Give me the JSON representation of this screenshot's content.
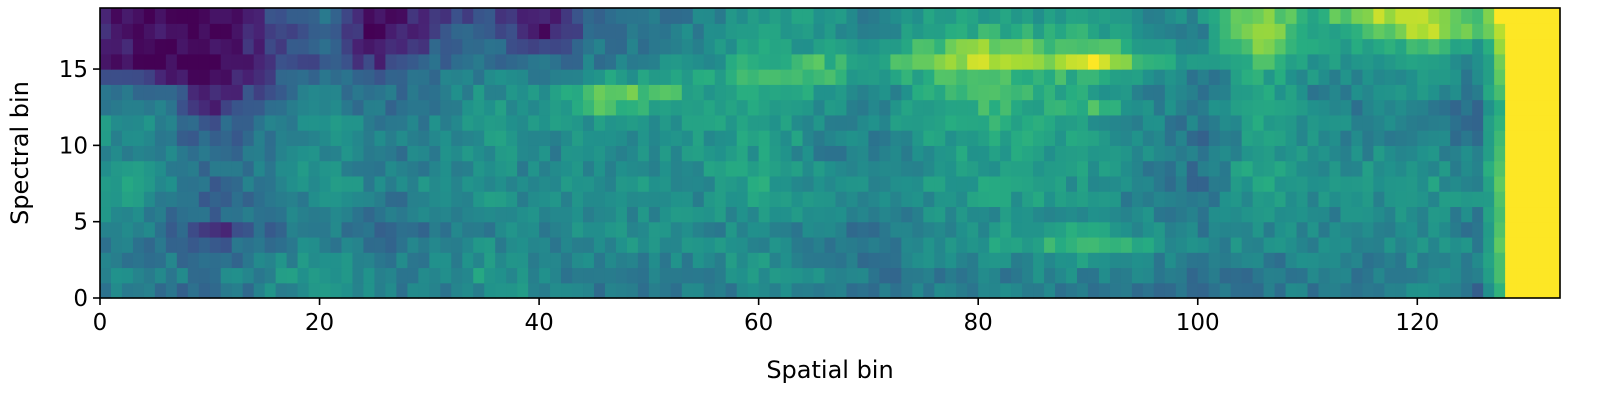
{
  "chart_data": {
    "type": "heatmap",
    "title": "",
    "xlabel": "Spatial bin",
    "ylabel": "Spectral bin",
    "xlim": [
      0,
      133
    ],
    "ylim": [
      0,
      19
    ],
    "n_cols": 133,
    "n_rows": 19,
    "xticks": [
      0,
      20,
      40,
      60,
      80,
      100,
      120
    ],
    "yticks": [
      0,
      5,
      10,
      15
    ],
    "colormap": "viridis",
    "colorbar": false,
    "grid": false,
    "value_range": [
      0,
      1
    ],
    "value_description": "approximate normalized intensity; rows listed bottom (spectral bin 0) to top (spectral bin 18), keyframes at column indices",
    "keyframe_columns": [
      0,
      5,
      10,
      15,
      20,
      25,
      30,
      35,
      40,
      45,
      50,
      55,
      60,
      65,
      70,
      75,
      80,
      85,
      90,
      95,
      100,
      105,
      110,
      115,
      120,
      125,
      127,
      128,
      132
    ],
    "keyframe_values": [
      [
        0.45,
        0.38,
        0.35,
        0.45,
        0.55,
        0.45,
        0.4,
        0.5,
        0.48,
        0.42,
        0.4,
        0.42,
        0.48,
        0.45,
        0.4,
        0.42,
        0.45,
        0.45,
        0.42,
        0.4,
        0.35,
        0.42,
        0.4,
        0.42,
        0.48,
        0.35,
        0.65,
        1.0,
        1.0
      ],
      [
        0.45,
        0.42,
        0.4,
        0.48,
        0.55,
        0.45,
        0.42,
        0.58,
        0.45,
        0.4,
        0.42,
        0.45,
        0.5,
        0.48,
        0.4,
        0.4,
        0.42,
        0.45,
        0.45,
        0.42,
        0.38,
        0.4,
        0.42,
        0.4,
        0.45,
        0.4,
        0.7,
        1.0,
        1.0
      ],
      [
        0.45,
        0.4,
        0.35,
        0.45,
        0.5,
        0.42,
        0.45,
        0.5,
        0.48,
        0.42,
        0.45,
        0.48,
        0.5,
        0.45,
        0.4,
        0.45,
        0.48,
        0.5,
        0.55,
        0.45,
        0.4,
        0.42,
        0.45,
        0.42,
        0.48,
        0.42,
        0.7,
        1.0,
        1.0
      ],
      [
        0.4,
        0.38,
        0.3,
        0.4,
        0.45,
        0.38,
        0.42,
        0.48,
        0.45,
        0.5,
        0.52,
        0.48,
        0.5,
        0.45,
        0.38,
        0.48,
        0.55,
        0.62,
        0.72,
        0.55,
        0.45,
        0.48,
        0.48,
        0.45,
        0.5,
        0.45,
        0.75,
        1.0,
        1.0
      ],
      [
        0.45,
        0.4,
        0.15,
        0.35,
        0.45,
        0.35,
        0.4,
        0.45,
        0.45,
        0.48,
        0.5,
        0.45,
        0.48,
        0.42,
        0.4,
        0.45,
        0.52,
        0.55,
        0.58,
        0.5,
        0.42,
        0.48,
        0.45,
        0.42,
        0.48,
        0.42,
        0.72,
        1.0,
        1.0
      ],
      [
        0.5,
        0.4,
        0.32,
        0.4,
        0.48,
        0.38,
        0.45,
        0.48,
        0.48,
        0.45,
        0.48,
        0.48,
        0.52,
        0.45,
        0.42,
        0.48,
        0.5,
        0.52,
        0.5,
        0.45,
        0.4,
        0.5,
        0.48,
        0.45,
        0.5,
        0.45,
        0.7,
        1.0,
        1.0
      ],
      [
        0.55,
        0.45,
        0.28,
        0.42,
        0.5,
        0.4,
        0.42,
        0.5,
        0.45,
        0.48,
        0.5,
        0.48,
        0.55,
        0.48,
        0.45,
        0.5,
        0.55,
        0.55,
        0.5,
        0.42,
        0.38,
        0.55,
        0.5,
        0.48,
        0.52,
        0.48,
        0.72,
        1.0,
        1.0
      ],
      [
        0.6,
        0.5,
        0.32,
        0.45,
        0.55,
        0.45,
        0.48,
        0.52,
        0.48,
        0.5,
        0.52,
        0.5,
        0.58,
        0.5,
        0.48,
        0.52,
        0.58,
        0.52,
        0.52,
        0.4,
        0.35,
        0.58,
        0.55,
        0.5,
        0.55,
        0.45,
        0.75,
        1.0,
        1.0
      ],
      [
        0.55,
        0.48,
        0.35,
        0.45,
        0.52,
        0.42,
        0.45,
        0.5,
        0.45,
        0.48,
        0.5,
        0.52,
        0.58,
        0.48,
        0.45,
        0.5,
        0.55,
        0.55,
        0.55,
        0.42,
        0.38,
        0.6,
        0.52,
        0.5,
        0.52,
        0.45,
        0.72,
        1.0,
        1.0
      ],
      [
        0.5,
        0.45,
        0.35,
        0.42,
        0.5,
        0.4,
        0.45,
        0.52,
        0.45,
        0.48,
        0.5,
        0.5,
        0.55,
        0.45,
        0.42,
        0.52,
        0.58,
        0.55,
        0.55,
        0.45,
        0.4,
        0.55,
        0.5,
        0.48,
        0.5,
        0.42,
        0.7,
        1.0,
        1.0
      ],
      [
        0.5,
        0.4,
        0.3,
        0.4,
        0.48,
        0.42,
        0.45,
        0.55,
        0.48,
        0.5,
        0.5,
        0.52,
        0.6,
        0.48,
        0.42,
        0.55,
        0.58,
        0.58,
        0.55,
        0.42,
        0.38,
        0.55,
        0.48,
        0.45,
        0.45,
        0.4,
        0.68,
        1.0,
        1.0
      ],
      [
        0.55,
        0.45,
        0.28,
        0.4,
        0.5,
        0.42,
        0.45,
        0.52,
        0.5,
        0.52,
        0.5,
        0.55,
        0.58,
        0.5,
        0.45,
        0.6,
        0.62,
        0.6,
        0.55,
        0.45,
        0.4,
        0.58,
        0.5,
        0.45,
        0.45,
        0.35,
        0.65,
        1.0,
        1.0
      ],
      [
        0.45,
        0.38,
        0.15,
        0.35,
        0.45,
        0.38,
        0.42,
        0.52,
        0.48,
        0.7,
        0.6,
        0.55,
        0.62,
        0.52,
        0.45,
        0.58,
        0.65,
        0.62,
        0.68,
        0.48,
        0.4,
        0.62,
        0.45,
        0.42,
        0.45,
        0.35,
        0.62,
        1.0,
        1.0
      ],
      [
        0.4,
        0.32,
        0.1,
        0.3,
        0.42,
        0.35,
        0.4,
        0.5,
        0.48,
        0.75,
        0.72,
        0.55,
        0.65,
        0.55,
        0.42,
        0.6,
        0.68,
        0.62,
        0.6,
        0.45,
        0.4,
        0.6,
        0.45,
        0.45,
        0.48,
        0.4,
        0.7,
        1.0,
        1.0
      ],
      [
        0.3,
        0.1,
        0.02,
        0.25,
        0.4,
        0.3,
        0.38,
        0.45,
        0.42,
        0.55,
        0.55,
        0.58,
        0.7,
        0.72,
        0.5,
        0.65,
        0.7,
        0.65,
        0.65,
        0.5,
        0.4,
        0.62,
        0.5,
        0.48,
        0.5,
        0.45,
        0.75,
        1.0,
        1.0
      ],
      [
        0.05,
        0.02,
        0.0,
        0.15,
        0.3,
        0.15,
        0.32,
        0.38,
        0.35,
        0.42,
        0.45,
        0.52,
        0.65,
        0.68,
        0.55,
        0.82,
        0.9,
        0.78,
        0.95,
        0.62,
        0.5,
        0.72,
        0.55,
        0.55,
        0.55,
        0.48,
        0.78,
        1.0,
        1.0
      ],
      [
        0.15,
        0.05,
        0.02,
        0.2,
        0.35,
        0.05,
        0.28,
        0.35,
        0.2,
        0.38,
        0.42,
        0.48,
        0.58,
        0.55,
        0.5,
        0.7,
        0.8,
        0.72,
        0.78,
        0.55,
        0.5,
        0.78,
        0.6,
        0.55,
        0.7,
        0.55,
        0.85,
        1.0,
        1.0
      ],
      [
        0.1,
        0.05,
        0.0,
        0.18,
        0.32,
        0.0,
        0.25,
        0.3,
        0.05,
        0.35,
        0.4,
        0.45,
        0.55,
        0.52,
        0.45,
        0.58,
        0.62,
        0.6,
        0.6,
        0.48,
        0.45,
        0.88,
        0.55,
        0.7,
        0.9,
        0.7,
        0.9,
        1.0,
        1.0
      ],
      [
        0.1,
        0.05,
        0.02,
        0.2,
        0.35,
        0.02,
        0.2,
        0.25,
        0.1,
        0.38,
        0.4,
        0.42,
        0.58,
        0.52,
        0.45,
        0.55,
        0.55,
        0.55,
        0.55,
        0.48,
        0.5,
        0.82,
        0.6,
        0.85,
        0.95,
        0.72,
        1.0,
        1.0,
        1.0
      ]
    ]
  }
}
